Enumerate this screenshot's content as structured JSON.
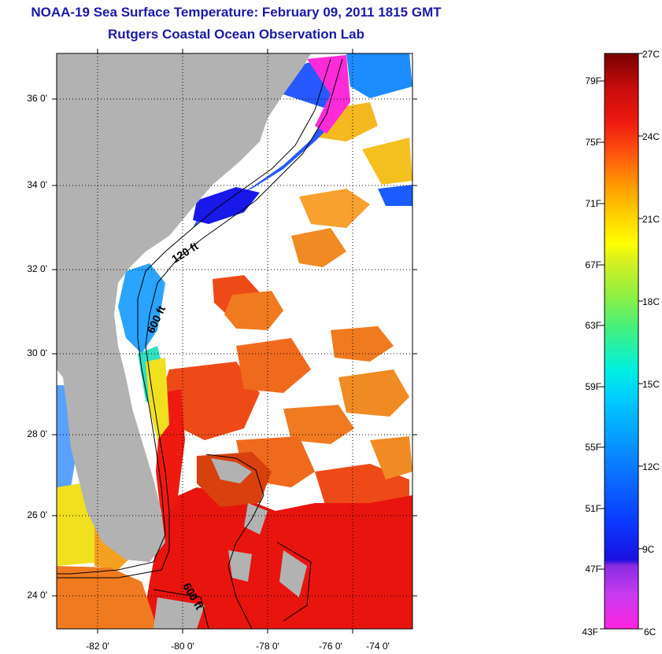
{
  "header": {
    "title": "NOAA-19 Sea Surface Temperature:  February 09, 2011 1815 GMT",
    "subtitle": "Rutgers Coastal Ocean Observation Lab"
  },
  "map": {
    "lon_range": [
      -83,
      -73
    ],
    "lat_range": [
      23,
      37
    ],
    "lon_ticks": [
      {
        "value": -82,
        "label": "-82 0'"
      },
      {
        "value": -80,
        "label": "-80 0'"
      },
      {
        "value": -78,
        "label": "-78 0'"
      },
      {
        "value": -76,
        "label": "-76 0'"
      },
      {
        "value": -74,
        "label": "-74 0'"
      }
    ],
    "lat_ticks": [
      {
        "value": 24,
        "label": "24 0'"
      },
      {
        "value": 26,
        "label": "26 0'"
      },
      {
        "value": 28,
        "label": "28 0'"
      },
      {
        "value": 30,
        "label": "30 0'"
      },
      {
        "value": 32,
        "label": "32 0'"
      },
      {
        "value": 34,
        "label": "34 0'"
      },
      {
        "value": 36,
        "label": "36 0'"
      }
    ],
    "contour_labels": [
      "120 ft",
      "600 ft",
      "600 ft"
    ],
    "colors": {
      "land": "#b2b2b2",
      "cloud": "#ffffff",
      "grid": "#000000"
    }
  },
  "colorbar": {
    "celsius_labels": [
      "27C",
      "24C",
      "21C",
      "18C",
      "15C",
      "12C",
      "9C",
      "6C"
    ],
    "fahrenheit_labels": [
      "79F",
      "75F",
      "71F",
      "67F",
      "63F",
      "59F",
      "55F",
      "51F",
      "47F",
      "43F"
    ]
  }
}
